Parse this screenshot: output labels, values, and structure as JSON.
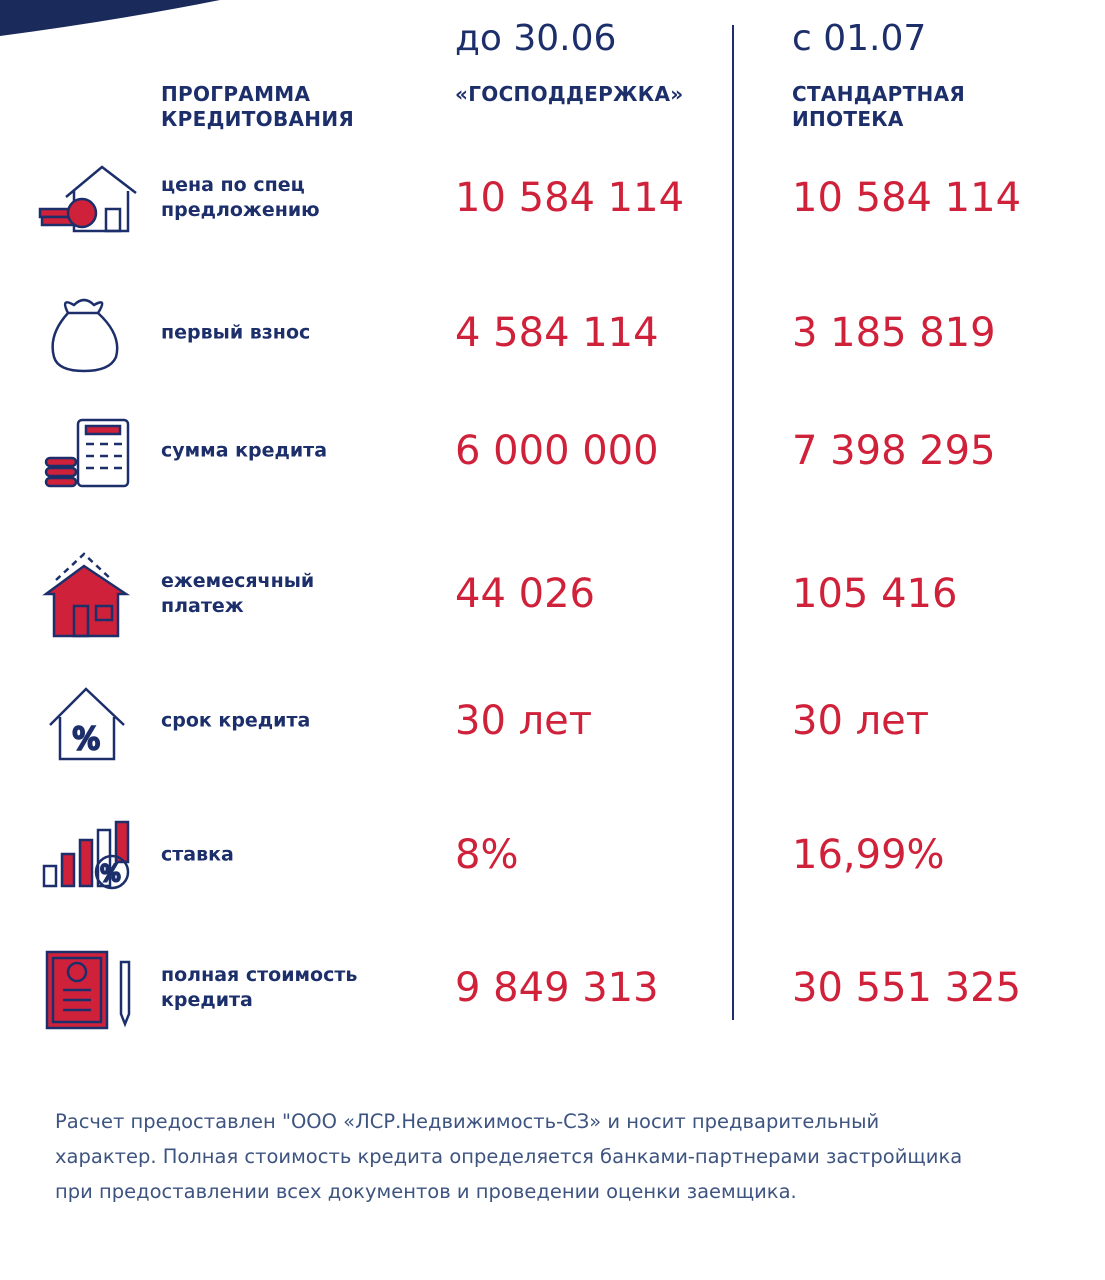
{
  "header": {
    "period_1": "до 30.06",
    "period_2": "с 01.07",
    "label": "ПРОГРАММА\nКРЕДИТОВАНИЯ",
    "program_1": "«ГОСПОДДЕРЖКА»",
    "program_2": "СТАНДАРТНАЯ\nИПОТЕКА"
  },
  "rows": [
    {
      "label": "цена по спец\nпредложению",
      "value_1": "10 584 114",
      "value_2": "10 584 114"
    },
    {
      "label": "первый взнос",
      "value_1": "4 584 114",
      "value_2": "3 185 819"
    },
    {
      "label": "сумма кредита",
      "value_1": "6 000 000",
      "value_2": "7 398 295"
    },
    {
      "label": "ежемесячный\nплатеж",
      "value_1": "44 026",
      "value_2": "105 416"
    },
    {
      "label": "срок кредита",
      "value_1": "30 лет",
      "value_2": "30 лет"
    },
    {
      "label": "ставка",
      "value_1": "8%",
      "value_2": "16,99%"
    },
    {
      "label": "полная стоимость\nкредита",
      "value_1": "9 849 313",
      "value_2": "30 551 325"
    }
  ],
  "footnote": "Расчет предоставлен \"ООО «ЛСР.Недвижимость-СЗ» и носит предварительный\nхарактер. Полная стоимость кредита определяется банками-партнерами застройщика\nпри предоставлении всех документов и проведении оценки заемщика."
}
